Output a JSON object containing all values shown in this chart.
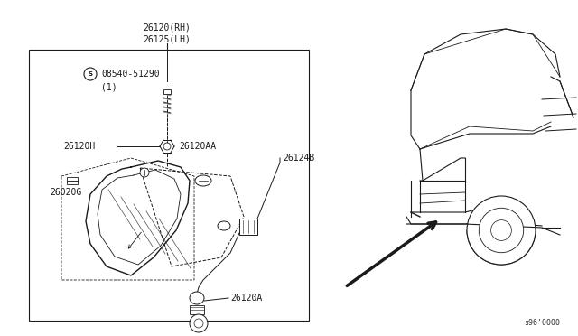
{
  "bg_color": "#ffffff",
  "line_color": "#1a1a1a",
  "title_label1": "26120(RH)",
  "title_label2": "26125(LH)",
  "font_size": 7.0,
  "small_font_size": 6.0,
  "catalog_num": "s96'0000"
}
